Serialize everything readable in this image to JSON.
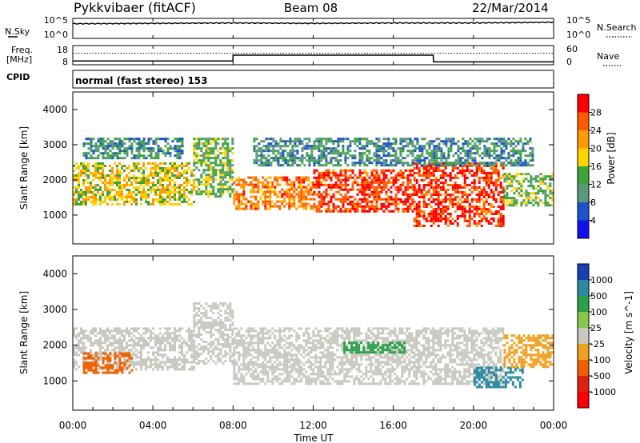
{
  "header": {
    "station": "Pykkvibaer (fitACF)",
    "beam": "Beam 08",
    "date": "22/Mar/2014"
  },
  "noise_panel": {
    "left_label": "N.Sky",
    "right_label": "N.Search",
    "left_ticks": [
      "10^5",
      "10^0"
    ],
    "right_ticks": [
      "10^5",
      "10^0"
    ]
  },
  "freq_panel": {
    "left_label_line1": "Freq.",
    "left_label_line2": "[MHz]",
    "left_ticks": [
      "18",
      "8"
    ],
    "right_label": "Nave",
    "right_ticks": [
      "60",
      "0"
    ]
  },
  "cpid_panel": {
    "label": "CPID",
    "text": "normal (fast stereo) 153"
  },
  "power_panel": {
    "ylabel": "Slant Range [km]",
    "y_ticks": [
      "4000",
      "3000",
      "2000",
      "1000"
    ],
    "colorbar_label": "Power [dB]",
    "colorbar_ticks": [
      "28",
      "24",
      "20",
      "16",
      "12",
      "8",
      "4"
    ],
    "colorbar_colors": [
      "#ff0000",
      "#ff5a00",
      "#ff9a00",
      "#ffd200",
      "#3aa43a",
      "#5a9a7a",
      "#1e52c8",
      "#1010ee"
    ]
  },
  "velocity_panel": {
    "ylabel": "Slant Range [km]",
    "y_ticks": [
      "4000",
      "3000",
      "2000",
      "1000"
    ],
    "colorbar_label": "Velocity [m s^-1]",
    "colorbar_ticks": [
      "1000",
      "500",
      "100",
      "25",
      "-25",
      "-100",
      "-500",
      "-1000"
    ],
    "colorbar_colors": [
      "#1a3fb0",
      "#2a8aa0",
      "#2aa04a",
      "#86c84a",
      "#c8c8c0",
      "#f0a020",
      "#f06000",
      "#e02010",
      "#ff0000"
    ]
  },
  "x_axis": {
    "ticks": [
      "00:00",
      "04:00",
      "08:00",
      "12:00",
      "16:00",
      "20:00",
      "00:00"
    ],
    "label": "Time UT"
  },
  "chart_data": [
    {
      "type": "line",
      "title": "Pykkvibaer (fitACF) Beam 08 22/Mar/2014",
      "xlabel": "",
      "x_range_hours": [
        0,
        24
      ],
      "series": [
        {
          "name": "N.Sky",
          "x": [
            0,
            4,
            8,
            12,
            16,
            20,
            24
          ],
          "y_log10": [
            3.8,
            3.9,
            4.0,
            3.9,
            4.0,
            4.0,
            4.2
          ]
        },
        {
          "name": "N.Search",
          "x": [
            0,
            4,
            8,
            12,
            16,
            20,
            24
          ],
          "y_log10": [
            3.9,
            4.0,
            4.1,
            4.0,
            4.1,
            4.1,
            4.3
          ]
        }
      ]
    },
    {
      "type": "line",
      "xlabel": "",
      "x_range_hours": [
        0,
        24
      ],
      "series": [
        {
          "name": "Freq.",
          "x": [
            0,
            7.99,
            8.0,
            17.99,
            18.0,
            24
          ],
          "y": [
            10,
            10,
            13,
            13,
            9.5,
            9.5
          ]
        },
        {
          "name": "Nave",
          "x": [
            0,
            24
          ],
          "y": [
            36,
            36
          ]
        }
      ]
    },
    {
      "type": "heatmap",
      "title": "Power [dB]",
      "xlabel": "Time UT",
      "ylabel": "Slant Range [km]",
      "x_range_hours": [
        0,
        24
      ],
      "ylim": [
        180,
        4500
      ],
      "zlim": [
        0,
        30
      ],
      "scatter_bands": [
        {
          "t_start": 0.0,
          "t_end": 6.0,
          "range_low": 1300,
          "range_high": 2500,
          "power_db": 16
        },
        {
          "t_start": 0.5,
          "t_end": 5.5,
          "range_low": 2600,
          "range_high": 3200,
          "power_db": 8
        },
        {
          "t_start": 6.0,
          "t_end": 8.0,
          "range_low": 1500,
          "range_high": 3200,
          "power_db": 12
        },
        {
          "t_start": 8.0,
          "t_end": 12.0,
          "range_low": 1200,
          "range_high": 2100,
          "power_db": 22
        },
        {
          "t_start": 12.0,
          "t_end": 17.0,
          "range_low": 1100,
          "range_high": 2300,
          "power_db": 26
        },
        {
          "t_start": 17.0,
          "t_end": 21.5,
          "range_low": 700,
          "range_high": 2500,
          "power_db": 26
        },
        {
          "t_start": 21.5,
          "t_end": 24.0,
          "range_low": 1300,
          "range_high": 2200,
          "power_db": 12
        },
        {
          "t_start": 9.0,
          "t_end": 23.0,
          "range_low": 2400,
          "range_high": 3200,
          "power_db": 8
        }
      ]
    },
    {
      "type": "heatmap",
      "title": "Velocity [m s^-1]",
      "xlabel": "Time UT",
      "ylabel": "Slant Range [km]",
      "x_range_hours": [
        0,
        24
      ],
      "ylim": [
        180,
        4500
      ],
      "zlim": [
        -1000,
        1000
      ],
      "scatter_bands": [
        {
          "t_start": 0.0,
          "t_end": 6.0,
          "range_low": 1300,
          "range_high": 2500,
          "velocity": 0
        },
        {
          "t_start": 0.5,
          "t_end": 3.0,
          "range_low": 1200,
          "range_high": 1800,
          "velocity": -300
        },
        {
          "t_start": 6.0,
          "t_end": 8.0,
          "range_low": 1500,
          "range_high": 3200,
          "velocity": 0
        },
        {
          "t_start": 8.0,
          "t_end": 21.5,
          "range_low": 900,
          "range_high": 2500,
          "velocity": 0
        },
        {
          "t_start": 13.5,
          "t_end": 16.5,
          "range_low": 1800,
          "range_high": 2100,
          "velocity": 100
        },
        {
          "t_start": 20.0,
          "t_end": 22.5,
          "range_low": 800,
          "range_high": 1400,
          "velocity": 400
        },
        {
          "t_start": 21.5,
          "t_end": 24.0,
          "range_low": 1400,
          "range_high": 2300,
          "velocity": -60
        }
      ]
    }
  ]
}
